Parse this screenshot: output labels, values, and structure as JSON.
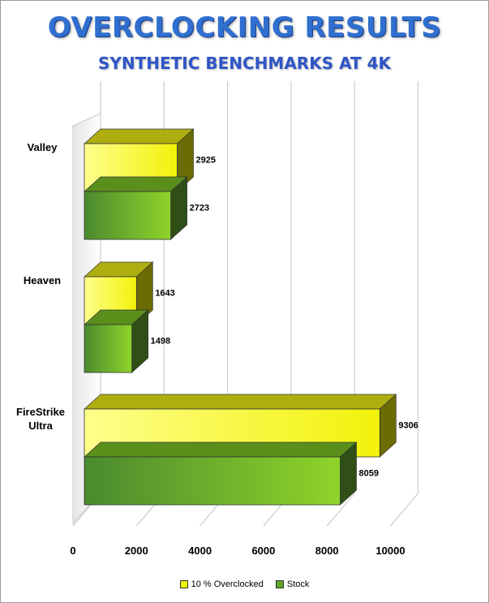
{
  "title": "OVERCLOCKING RESULTS",
  "subtitle": "SYNTHETIC BENCHMARKS AT 4K",
  "colors": {
    "overclocked_front": "#f2f20a",
    "overclocked_light": "#fefe8c",
    "overclocked_top": "#aeae10",
    "overclocked_side": "#6c6c05",
    "stock_front": "#8fd42a",
    "stock_dark": "#4b8a2e",
    "stock_top": "#5a8f1c",
    "stock_side": "#2f4f16"
  },
  "chart_data": {
    "type": "bar",
    "orientation": "horizontal",
    "categories": [
      "Valley",
      "Heaven",
      "FireStrike Ultra"
    ],
    "series": [
      {
        "name": "10 % Overclocked",
        "values": [
          2925,
          1643,
          9306
        ]
      },
      {
        "name": "Stock",
        "values": [
          2723,
          1498,
          8059
        ]
      }
    ],
    "xlim": [
      0,
      10000
    ],
    "x_ticks": [
      "0",
      "2000",
      "4000",
      "6000",
      "8000",
      "10000"
    ],
    "grid": true,
    "legend_position": "bottom",
    "data_labels": true
  }
}
